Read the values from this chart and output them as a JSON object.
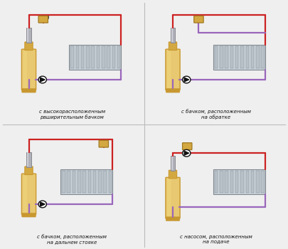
{
  "bg_color": "#efefef",
  "pipe_red": "#cc2222",
  "pipe_purple": "#9966bb",
  "boiler_body_top": "#e8c870",
  "boiler_body_bot": "#c89830",
  "boiler_neck": "#d4a840",
  "boiler_pipe_gray": "#b0b0b8",
  "boiler_pipe_light": "#d8d8e0",
  "tank_color": "#d4a840",
  "tank_border": "#a07820",
  "radiator_body": "#c8d0d8",
  "radiator_fin": "#b8c0c8",
  "radiator_edge": "#808890",
  "pump_fill": "#ffffff",
  "pump_border": "#111111",
  "pump_arrow": "#111111",
  "text_color": "#111111",
  "divider_color": "#bbbbbb",
  "labels": [
    "с высокорасположенным\nраширительным бачком",
    "с бачком, расположенным\nна обратке",
    "с бачком, расположенным\nна дальнем стояке",
    "с насосом, расположенным\nна подаче"
  ]
}
